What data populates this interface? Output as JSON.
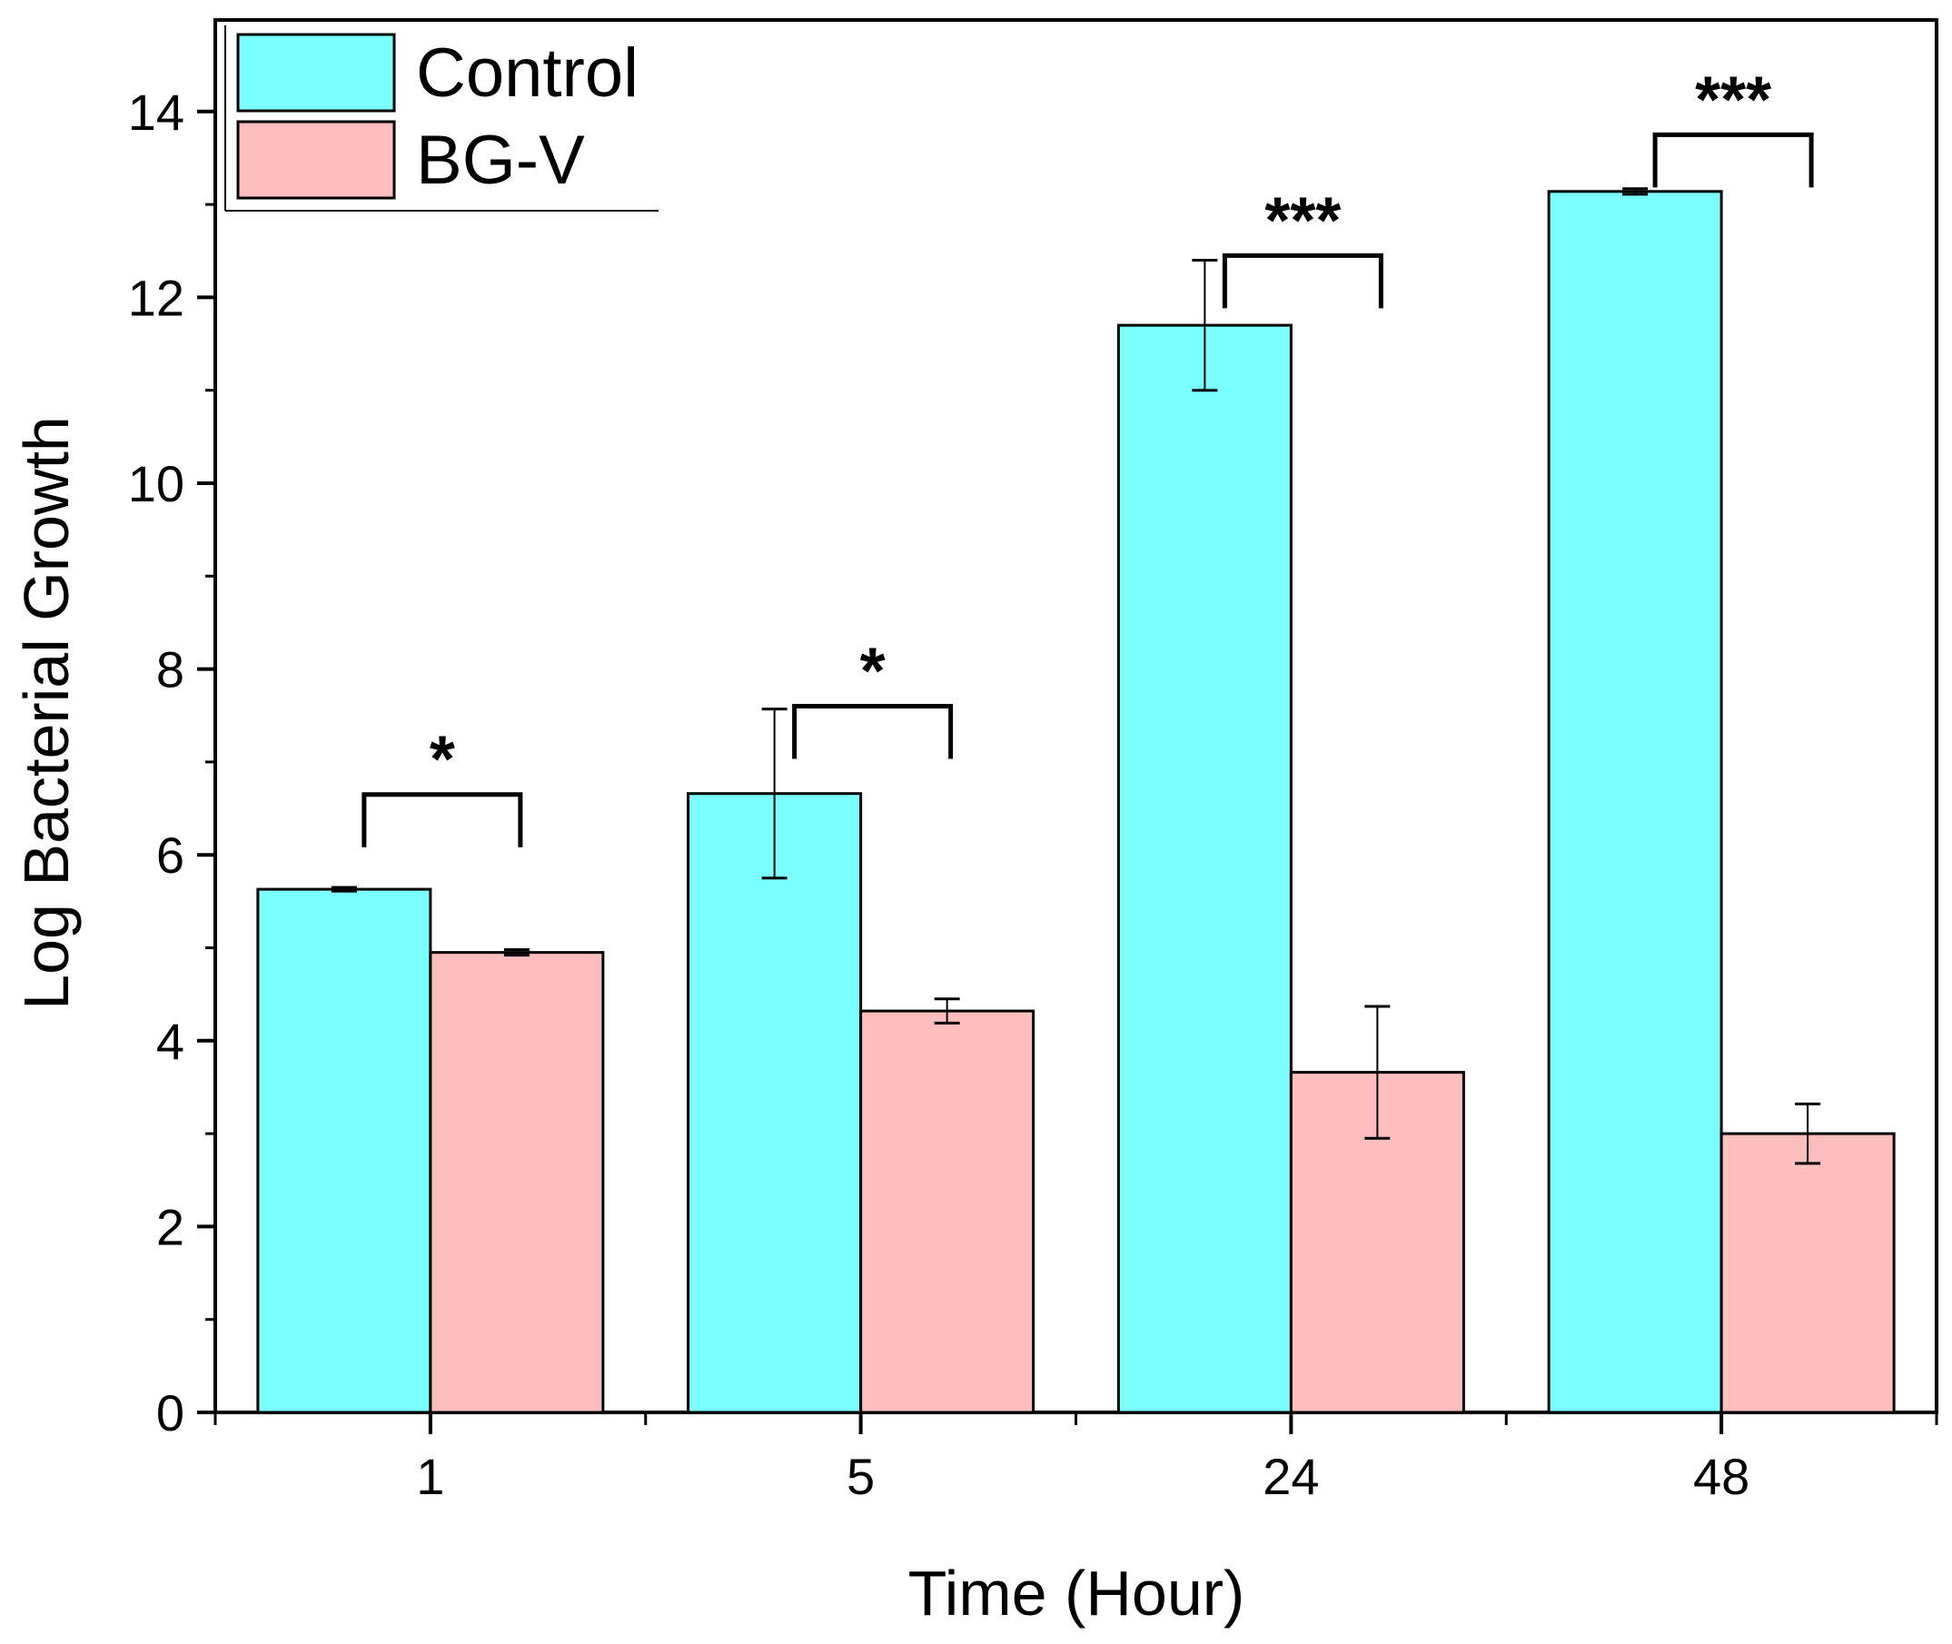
{
  "chart_data": {
    "type": "bar",
    "title": "",
    "xlabel": "Time (Hour)",
    "ylabel": "Log Bacterial Growth",
    "categories": [
      "1",
      "5",
      "24",
      "48"
    ],
    "ylim": [
      0,
      15
    ],
    "yticks": [
      0,
      2,
      4,
      6,
      8,
      10,
      12,
      14
    ],
    "ytick_labels": [
      "0",
      "2",
      "4",
      "6",
      "8",
      "10",
      "12",
      "14"
    ],
    "series": [
      {
        "name": "Control",
        "color": "#7bfffe",
        "values": [
          5.63,
          6.66,
          11.7,
          13.14
        ],
        "errors": [
          0.02,
          0.91,
          0.7,
          0.03
        ]
      },
      {
        "name": "BG-V",
        "color": "#febebe",
        "values": [
          4.95,
          4.32,
          3.66,
          3.0
        ],
        "errors": [
          0.03,
          0.13,
          0.71,
          0.32
        ]
      }
    ],
    "legend": {
      "position": "top-left",
      "entries": [
        "Control",
        "BG-V"
      ]
    },
    "significance": [
      {
        "category": "1",
        "label": "*",
        "height": 6.65
      },
      {
        "category": "5",
        "label": "*",
        "height": 7.6
      },
      {
        "category": "24",
        "label": "***",
        "height": 12.45
      },
      {
        "category": "48",
        "label": "***",
        "height": 13.75
      }
    ]
  }
}
